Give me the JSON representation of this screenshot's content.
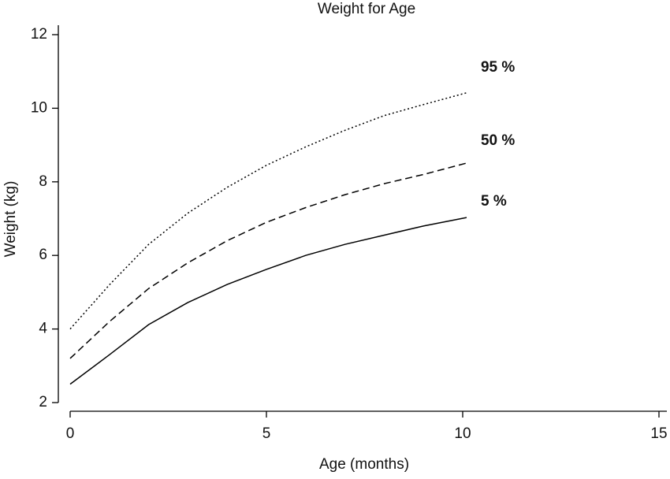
{
  "chart_data": {
    "type": "line",
    "title": "Weight for Age",
    "x_label": "Age (months)",
    "y_label": "Weight (kg)",
    "x": [
      0,
      1,
      2,
      3,
      4,
      5,
      6,
      7,
      8,
      9,
      10.1
    ],
    "series": [
      {
        "name": "95 %",
        "color": "#000000",
        "dash": "2,3",
        "values": [
          4.0,
          5.2,
          6.3,
          7.15,
          7.85,
          8.45,
          8.95,
          9.4,
          9.8,
          10.1,
          10.42
        ]
      },
      {
        "name": "50 %",
        "color": "#000000",
        "dash": "9,5",
        "values": [
          3.2,
          4.2,
          5.1,
          5.8,
          6.4,
          6.9,
          7.3,
          7.65,
          7.95,
          8.2,
          8.51
        ]
      },
      {
        "name": "5 %",
        "color": "#000000",
        "dash": null,
        "values": [
          2.5,
          3.3,
          4.12,
          4.72,
          5.21,
          5.62,
          6.0,
          6.3,
          6.55,
          6.8,
          7.03
        ]
      }
    ],
    "xlim": [
      0,
      15
    ],
    "xticks": [
      0,
      5,
      10,
      15
    ],
    "ylim": [
      2,
      12
    ],
    "yticks": [
      2,
      4,
      6,
      8,
      10,
      12
    ]
  }
}
